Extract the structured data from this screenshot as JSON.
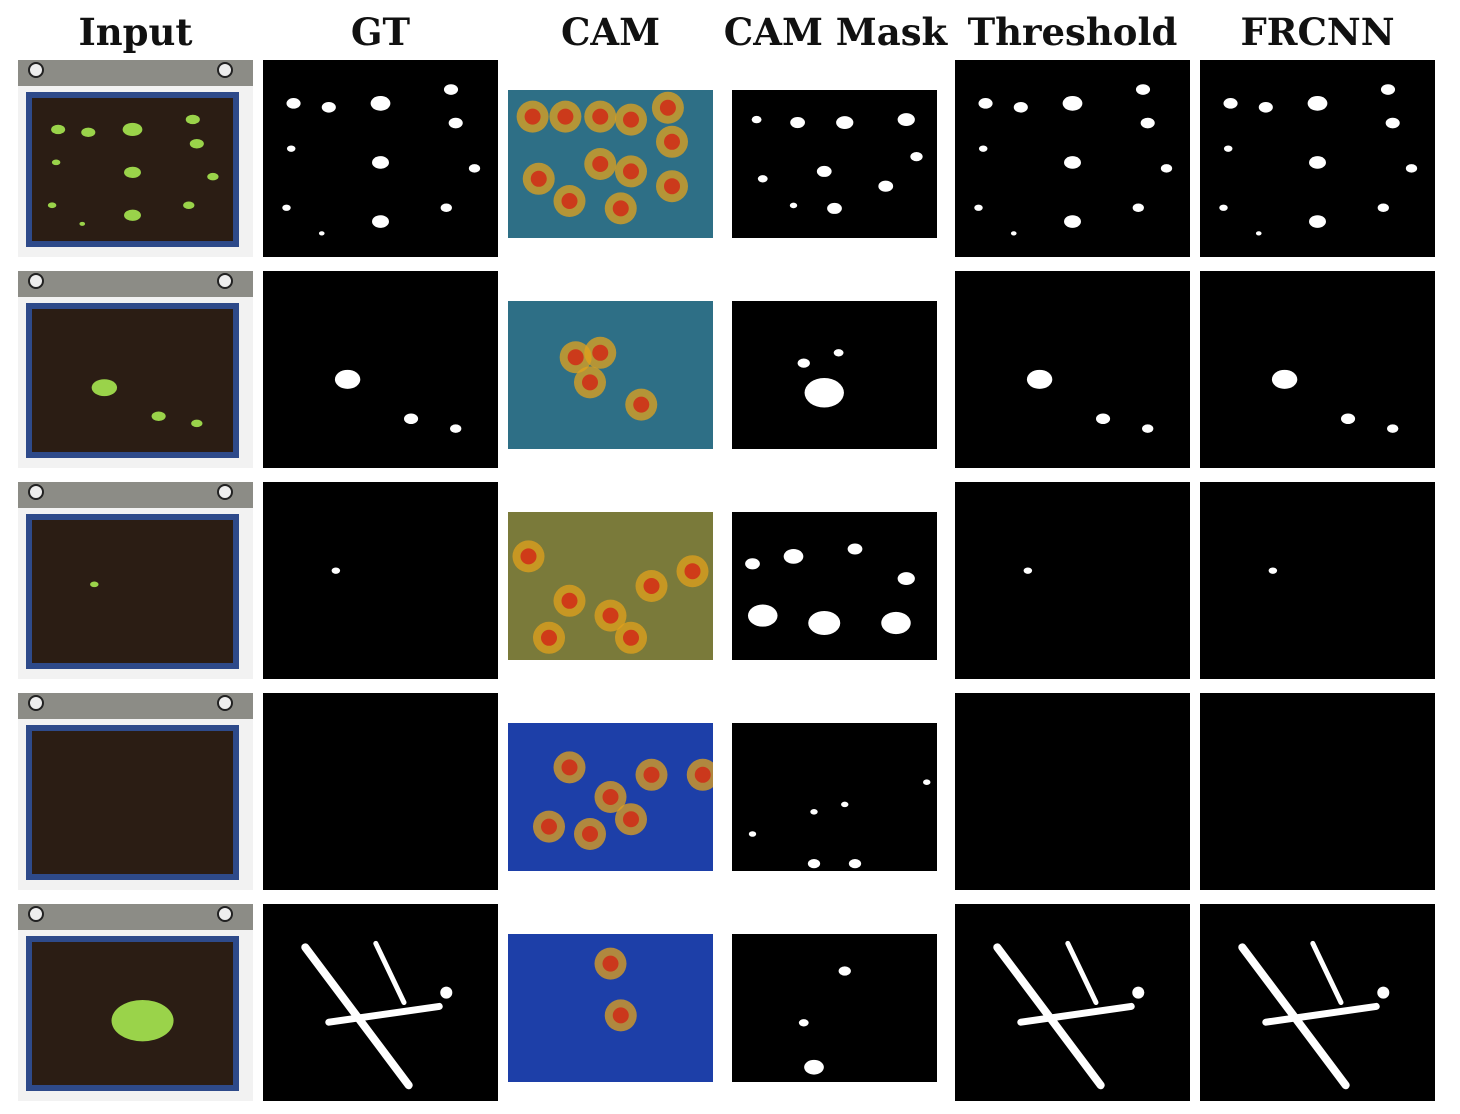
{
  "figure": {
    "columns": [
      {
        "key": "input",
        "label": "Input"
      },
      {
        "key": "gt",
        "label": "GT"
      },
      {
        "key": "cam",
        "label": "CAM"
      },
      {
        "key": "cam_mask",
        "label": "CAM Mask"
      },
      {
        "key": "threshold",
        "label": "Threshold"
      },
      {
        "key": "frcnn",
        "label": "FRCNN"
      }
    ],
    "colors": {
      "mask_background": "#000000",
      "mask_foreground": "#ffffff",
      "soil": "#2b1d14",
      "tray_border": "#2e4a8a",
      "plant": "#9ad34a",
      "cam_cool": "#1d3fa8",
      "cam_warm": "#d02a16"
    }
  }
}
